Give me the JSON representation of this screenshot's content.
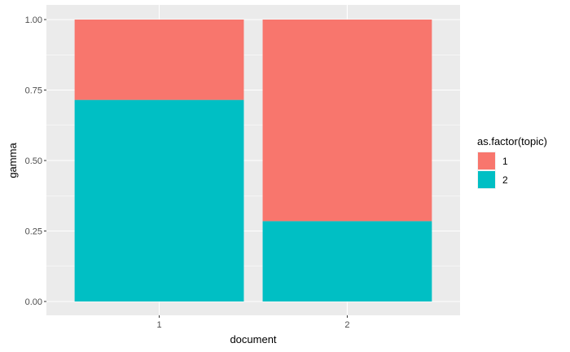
{
  "chart_data": {
    "type": "bar",
    "stacked": true,
    "categories": [
      "1",
      "2"
    ],
    "series": [
      {
        "name": "1",
        "color": "#F8766D",
        "values": [
          0.285,
          0.715
        ]
      },
      {
        "name": "2",
        "color": "#00BFC4",
        "values": [
          0.715,
          0.285
        ]
      }
    ],
    "xlabel": "document",
    "ylabel": "gamma",
    "ylim": [
      0,
      1
    ],
    "yticks": [
      0,
      0.25,
      0.5,
      0.75,
      1
    ],
    "ytick_labels": [
      "0.00",
      "0.25",
      "0.50",
      "0.75",
      "1.00"
    ],
    "legend": {
      "title": "as.factor(topic)",
      "placement": "right"
    },
    "grid": true,
    "panel_background": "#EBEBEB"
  }
}
